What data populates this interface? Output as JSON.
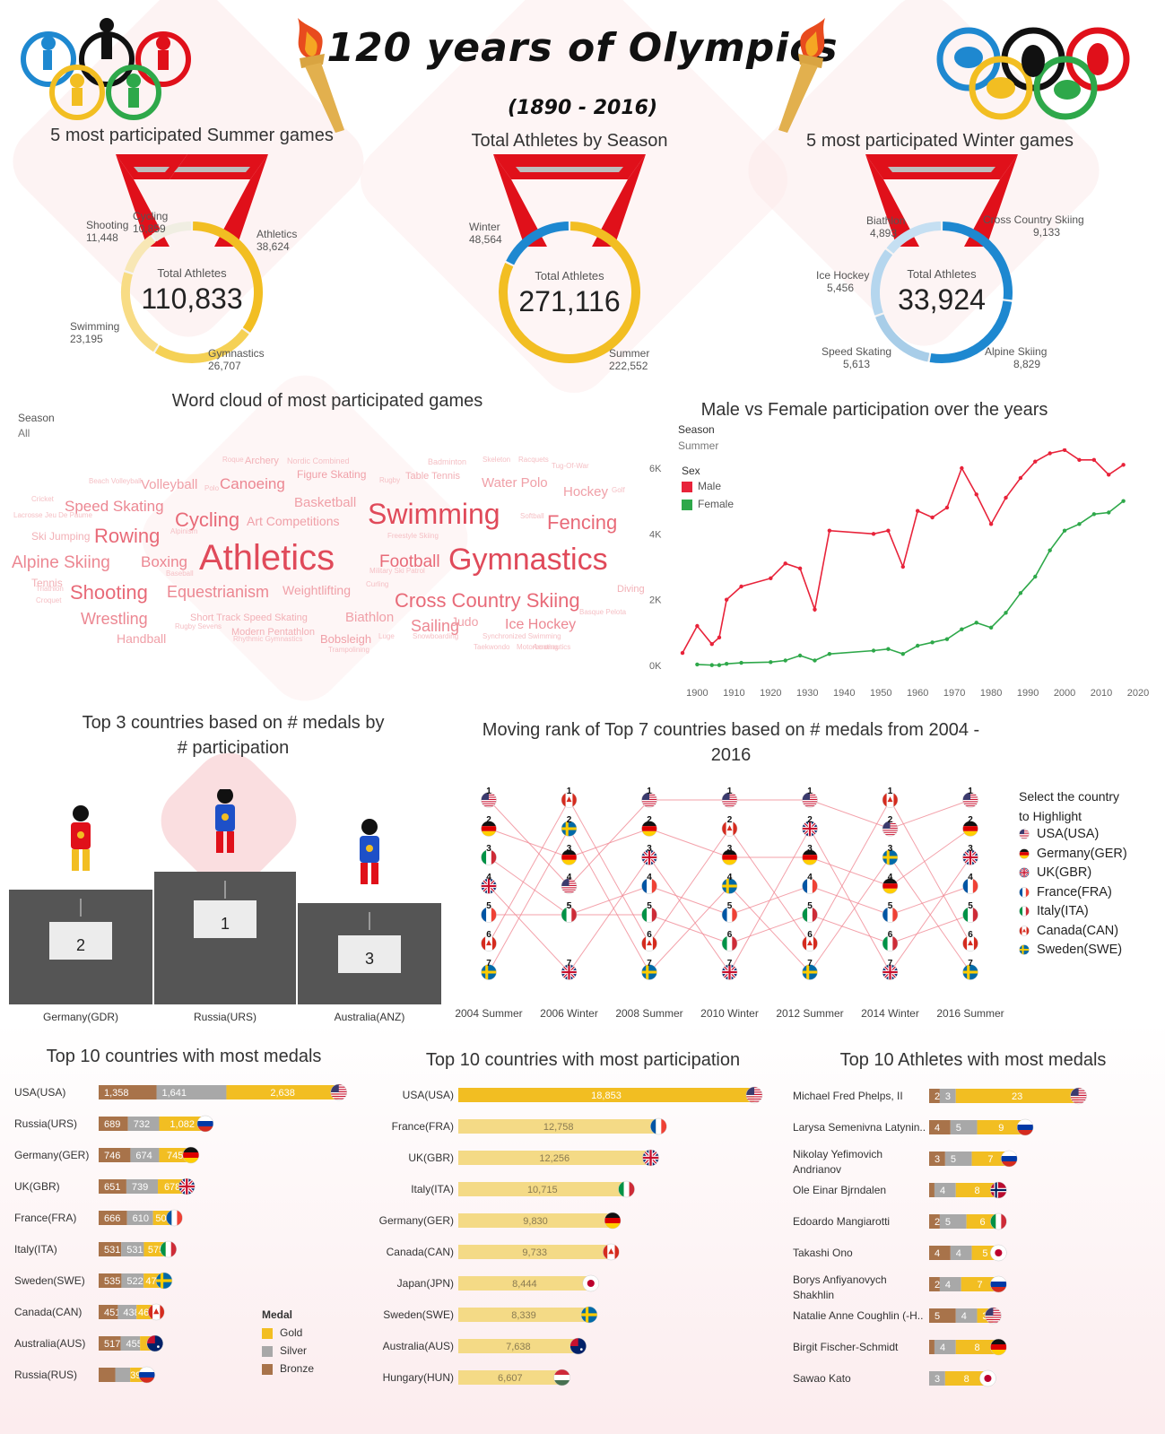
{
  "header": {
    "title": "120 years of Olympics",
    "subtitle": "(1890 - 2016)"
  },
  "colors": {
    "gold": "#F2BE22",
    "silver": "#A8A8A8",
    "bronze": "#A8734A",
    "male": "#E8233A",
    "female": "#2EA84A",
    "ribbon": "#E0101A",
    "winter_blue": "#1E88D0",
    "podium": "#555555"
  },
  "donuts": [
    {
      "title": "5 most participated Summer games",
      "center_label": "Total Athletes",
      "center_value": "110,833",
      "segments": [
        {
          "label": "Athletics",
          "value": 38624,
          "display": "38,624",
          "color": "#F2BE22"
        },
        {
          "label": "Gymnastics",
          "value": 26707,
          "display": "26,707",
          "color": "#F5D155"
        },
        {
          "label": "Swimming",
          "value": 23195,
          "display": "23,195",
          "color": "#F8DC85"
        },
        {
          "label": "Shooting",
          "value": 11448,
          "display": "11,448",
          "color": "#F8E7B5"
        },
        {
          "label": "Cycling",
          "value": 10859,
          "display": "10,859",
          "color": "#F0EEE2"
        }
      ]
    },
    {
      "title": "Total Athletes by Season",
      "center_label": "Total Athletes",
      "center_value": "271,116",
      "segments": [
        {
          "label": "Summer",
          "value": 222552,
          "display": "222,552",
          "color": "#F2BE22"
        },
        {
          "label": "Winter",
          "value": 48564,
          "display": "48,564",
          "color": "#1E88D0"
        }
      ]
    },
    {
      "title": "5 most participated Winter games",
      "center_label": "Total Athletes",
      "center_value": "33,924",
      "segments": [
        {
          "label": "Cross Country Skiing",
          "value": 9133,
          "display": "9,133",
          "color": "#1E88D0"
        },
        {
          "label": "Alpine Skiing",
          "value": 8829,
          "display": "8,829",
          "color": "#1E88D0"
        },
        {
          "label": "Speed Skating",
          "value": 5613,
          "display": "5,613",
          "color": "#A8CDE8"
        },
        {
          "label": "Ice Hockey",
          "value": 5456,
          "display": "5,456",
          "color": "#B5D6EE"
        },
        {
          "label": "Biathlon",
          "value": 4893,
          "display": "4,893",
          "color": "#C5DFF2"
        }
      ]
    }
  ],
  "wordcloud": {
    "title": "Word cloud of most participated games",
    "filter_label": "Season",
    "filter_value": "All",
    "words": [
      [
        "Athletics",
        40,
        "#E04A5A"
      ],
      [
        "Gymnastics",
        34,
        "#E04A5A"
      ],
      [
        "Swimming",
        32,
        "#E04A5A"
      ],
      [
        "Rowing",
        22,
        "#E86A78"
      ],
      [
        "Fencing",
        22,
        "#E86A78"
      ],
      [
        "Cycling",
        22,
        "#E86A78"
      ],
      [
        "Shooting",
        22,
        "#E86A78"
      ],
      [
        "Cross Country Skiing",
        22,
        "#E86A78"
      ],
      [
        "Football",
        19,
        "#E86A78"
      ],
      [
        "Alpine Skiing",
        19,
        "#EC8792"
      ],
      [
        "Speed Skating",
        17,
        "#EC8792"
      ],
      [
        "Wrestling",
        18,
        "#EC8792"
      ],
      [
        "Equestrianism",
        18,
        "#EC8792"
      ],
      [
        "Canoeing",
        17,
        "#EC8792"
      ],
      [
        "Sailing",
        18,
        "#EC8792"
      ],
      [
        "Boxing",
        17,
        "#EC8792"
      ],
      [
        "Ice Hockey",
        16,
        "#EC8792"
      ],
      [
        "Volleyball",
        15,
        "#F0A0A8"
      ],
      [
        "Basketball",
        15,
        "#F0A0A8"
      ],
      [
        "Water Polo",
        15,
        "#F0A0A8"
      ],
      [
        "Hockey",
        15,
        "#F0A0A8"
      ],
      [
        "Biathlon",
        15,
        "#F0A0A8"
      ],
      [
        "Weightlifting",
        14,
        "#F0A0A8"
      ],
      [
        "Handball",
        14,
        "#F0A0A8"
      ],
      [
        "Judo",
        14,
        "#F0A0A8"
      ],
      [
        "Bobsleigh",
        13,
        "#F0A0A8"
      ],
      [
        "Art Competitions",
        14,
        "#F0A0A8"
      ],
      [
        "Figure Skating",
        12,
        "#F0A0A8"
      ],
      [
        "Tennis",
        12,
        "#F2B0B6"
      ],
      [
        "Ski Jumping",
        12,
        "#F2B0B6"
      ],
      [
        "Modern Pentathlon",
        11,
        "#F2B0B6"
      ],
      [
        "Table Tennis",
        11,
        "#F2B0B6"
      ],
      [
        "Diving",
        11,
        "#F2B0B6"
      ],
      [
        "Short Track Speed Skating",
        11,
        "#F2B0B6"
      ],
      [
        "Archery",
        11,
        "#F2B0B6"
      ],
      [
        "Badminton",
        9,
        "#F5C0C5"
      ],
      [
        "Nordic Combined",
        9,
        "#F5C0C5"
      ],
      [
        "Lacrosse",
        8,
        "#F5C0C5"
      ],
      [
        "Jeu De Paume",
        8,
        "#F5C0C5"
      ],
      [
        "Cricket",
        8,
        "#F5C0C5"
      ],
      [
        "Beach Volleyball",
        8,
        "#F5C0C5"
      ],
      [
        "Roque",
        8,
        "#F5C0C5"
      ],
      [
        "Polo",
        8,
        "#F5C0C5"
      ],
      [
        "Rugby",
        8,
        "#F5C0C5"
      ],
      [
        "Skeleton",
        8,
        "#F5C0C5"
      ],
      [
        "Racquets",
        8,
        "#F5C0C5"
      ],
      [
        "Tug-Of-War",
        8,
        "#F5C0C5"
      ],
      [
        "Golf",
        8,
        "#F5C0C5"
      ],
      [
        "Softball",
        8,
        "#F5C0C5"
      ],
      [
        "Alpinism",
        8,
        "#F5C0C5"
      ],
      [
        "Freestyle Skiing",
        8,
        "#F5C0C5"
      ],
      [
        "Triathlon",
        8,
        "#F5C0C5"
      ],
      [
        "Croquet",
        8,
        "#F5C0C5"
      ],
      [
        "Baseball",
        8,
        "#F5C0C5"
      ],
      [
        "Curling",
        8,
        "#F5C0C5"
      ],
      [
        "Military Ski Patrol",
        8,
        "#F5C0C5"
      ],
      [
        "Basque Pelota",
        8,
        "#F5C0C5"
      ],
      [
        "Rugby Sevens",
        8,
        "#F5C0C5"
      ],
      [
        "Rhythmic Gymnastics",
        8,
        "#F5C0C5"
      ],
      [
        "Luge",
        8,
        "#F5C0C5"
      ],
      [
        "Snowboarding",
        8,
        "#F5C0C5"
      ],
      [
        "Synchronized Swimming",
        8,
        "#F5C0C5"
      ],
      [
        "Taekwondo",
        8,
        "#F5C0C5"
      ],
      [
        "Motorboating",
        8,
        "#F5C0C5"
      ],
      [
        "Aeronautics",
        8,
        "#F5C0C5"
      ],
      [
        "Trampolining",
        8,
        "#F5C0C5"
      ]
    ]
  },
  "chart_data": [
    {
      "type": "line",
      "title": "Male vs Female participation over the years",
      "filter_label": "Season",
      "filter_value": "Summer",
      "legend_title": "Sex",
      "legend_position": "top-left",
      "xticks": [
        1900,
        1910,
        1920,
        1930,
        1940,
        1950,
        1960,
        1970,
        1980,
        1990,
        2000,
        2010,
        2020
      ],
      "yticks": [
        "0K",
        "2K",
        "4K",
        "6K"
      ],
      "ylim": [
        0,
        6500
      ],
      "xlim": [
        1896,
        2020
      ],
      "series": [
        {
          "name": "Male",
          "points": [
            [
              1896,
              380
            ],
            [
              1900,
              1200
            ],
            [
              1904,
              650
            ],
            [
              1906,
              850
            ],
            [
              1908,
              2000
            ],
            [
              1912,
              2400
            ],
            [
              1920,
              2650
            ],
            [
              1924,
              3100
            ],
            [
              1928,
              2950
            ],
            [
              1932,
              1700
            ],
            [
              1936,
              4100
            ],
            [
              1948,
              4000
            ],
            [
              1952,
              4100
            ],
            [
              1956,
              3000
            ],
            [
              1960,
              4700
            ],
            [
              1964,
              4500
            ],
            [
              1968,
              4800
            ],
            [
              1972,
              6000
            ],
            [
              1976,
              5200
            ],
            [
              1980,
              4300
            ],
            [
              1984,
              5100
            ],
            [
              1988,
              5700
            ],
            [
              1992,
              6200
            ],
            [
              1996,
              6450
            ],
            [
              2000,
              6550
            ],
            [
              2004,
              6250
            ],
            [
              2008,
              6250
            ],
            [
              2012,
              5800
            ],
            [
              2016,
              6100
            ]
          ]
        },
        {
          "name": "Female",
          "points": [
            [
              1900,
              30
            ],
            [
              1904,
              10
            ],
            [
              1906,
              10
            ],
            [
              1908,
              50
            ],
            [
              1912,
              80
            ],
            [
              1920,
              100
            ],
            [
              1924,
              150
            ],
            [
              1928,
              300
            ],
            [
              1932,
              150
            ],
            [
              1936,
              350
            ],
            [
              1948,
              450
            ],
            [
              1952,
              500
            ],
            [
              1956,
              350
            ],
            [
              1960,
              600
            ],
            [
              1964,
              700
            ],
            [
              1968,
              800
            ],
            [
              1972,
              1100
            ],
            [
              1976,
              1300
            ],
            [
              1980,
              1150
            ],
            [
              1984,
              1600
            ],
            [
              1988,
              2200
            ],
            [
              1992,
              2700
            ],
            [
              1996,
              3500
            ],
            [
              2000,
              4100
            ],
            [
              2004,
              4300
            ],
            [
              2008,
              4600
            ],
            [
              2012,
              4650
            ],
            [
              2016,
              5000
            ]
          ]
        }
      ]
    },
    {
      "type": "bar",
      "title": "Top 3 countries based on # medals by # participation",
      "categories": [
        "Germany(GDR)",
        "Russia(URS)",
        "Australia(ANZ)"
      ],
      "values": [
        2,
        1,
        3
      ]
    },
    {
      "type": "line",
      "title": "Moving rank of Top 7 countries based on # medals from 2004 - 2016",
      "categories": [
        "2004 Summer",
        "2006 Winter",
        "2008 Summer",
        "2010 Winter",
        "2012 Summer",
        "2014 Winter",
        "2016 Summer"
      ],
      "legend_title": "Select the country to Highlight",
      "legend_position": "right",
      "series": [
        {
          "name": "USA(USA)",
          "code": "USA",
          "values": [
            1,
            4,
            1,
            1,
            1,
            2,
            1
          ]
        },
        {
          "name": "Germany(GER)",
          "code": "GER",
          "values": [
            2,
            3,
            2,
            3,
            3,
            4,
            2
          ]
        },
        {
          "name": "UK(GBR)",
          "code": "GBR",
          "values": [
            4,
            7,
            3,
            7,
            2,
            7,
            3
          ]
        },
        {
          "name": "France(FRA)",
          "code": "FRA",
          "values": [
            5,
            5,
            4,
            5,
            4,
            5,
            4
          ]
        },
        {
          "name": "Italy(ITA)",
          "code": "ITA",
          "values": [
            3,
            5,
            5,
            6,
            5,
            6,
            5
          ]
        },
        {
          "name": "Canada(CAN)",
          "code": "CAN",
          "values": [
            6,
            1,
            6,
            2,
            6,
            1,
            6
          ]
        },
        {
          "name": "Sweden(SWE)",
          "code": "SWE",
          "values": [
            7,
            2,
            7,
            4,
            7,
            3,
            7
          ]
        }
      ]
    },
    {
      "type": "bar",
      "title": "Top 10 countries with most medals",
      "legend_title": "Medal",
      "legend": [
        "Gold",
        "Silver",
        "Bronze"
      ],
      "categories": [
        "USA(USA)",
        "Russia(URS)",
        "Germany(GER)",
        "UK(GBR)",
        "France(FRA)",
        "Italy(ITA)",
        "Sweden(SWE)",
        "Canada(CAN)",
        "Australia(AUS)",
        "Russia(RUS)"
      ],
      "flags": [
        "USA",
        "RUS",
        "GER",
        "GBR",
        "FRA",
        "ITA",
        "SWE",
        "CAN",
        "AUS",
        "RUS"
      ],
      "series": [
        {
          "name": "Bronze",
          "values": [
            1358,
            689,
            746,
            651,
            666,
            531,
            535,
            451,
            517,
            390
          ]
        },
        {
          "name": "Silver",
          "values": [
            1641,
            732,
            674,
            739,
            610,
            531,
            522,
            438,
            455,
            350
          ]
        },
        {
          "name": "Gold",
          "values": [
            2638,
            1082,
            745,
            678,
            501,
            575,
            479,
            463,
            350,
            390
          ]
        }
      ],
      "display": [
        [
          "1,358",
          "1,641",
          "2,638"
        ],
        [
          "689",
          "732",
          "1,082"
        ],
        [
          "746",
          "674",
          "745"
        ],
        [
          "651",
          "739",
          "678"
        ],
        [
          "666",
          "610",
          "501"
        ],
        [
          "531",
          "531",
          "575"
        ],
        [
          "535",
          "522",
          "479"
        ],
        [
          "451",
          "438",
          "463"
        ],
        [
          "517",
          "455",
          ""
        ],
        [
          "",
          "",
          "390"
        ]
      ]
    },
    {
      "type": "bar",
      "title": "Top 10 countries with most participation",
      "categories": [
        "USA(USA)",
        "France(FRA)",
        "UK(GBR)",
        "Italy(ITA)",
        "Germany(GER)",
        "Canada(CAN)",
        "Japan(JPN)",
        "Sweden(SWE)",
        "Australia(AUS)",
        "Hungary(HUN)"
      ],
      "flags": [
        "USA",
        "FRA",
        "GBR",
        "ITA",
        "GER",
        "CAN",
        "JPN",
        "SWE",
        "AUS",
        "HUN"
      ],
      "values": [
        18853,
        12758,
        12256,
        10715,
        9830,
        9733,
        8444,
        8339,
        7638,
        6607
      ],
      "display": [
        "18,853",
        "12,758",
        "12,256",
        "10,715",
        "9,830",
        "9,733",
        "8,444",
        "8,339",
        "7,638",
        "6,607"
      ]
    },
    {
      "type": "bar",
      "title": "Top 10 Athletes with most medals",
      "categories": [
        "Michael Fred Phelps, II",
        "Larysa Semenivna Latynin..",
        "Nikolay Yefimovich Andrianov",
        "Ole Einar Bjrndalen",
        "Edoardo Mangiarotti",
        "Takashi Ono",
        "Borys Anfiyanovych Shakhlin",
        "Natalie Anne Coughlin (-H..",
        "Birgit Fischer-Schmidt",
        "Sawao Kato"
      ],
      "flags": [
        "USA",
        "RUS",
        "RUS",
        "NOR",
        "ITA",
        "JPN",
        "RUS",
        "USA",
        "GER",
        "JPN"
      ],
      "series": [
        {
          "name": "Bronze",
          "values": [
            2,
            4,
            3,
            1,
            2,
            4,
            2,
            5,
            1,
            0
          ]
        },
        {
          "name": "Silver",
          "values": [
            3,
            5,
            5,
            4,
            5,
            4,
            4,
            4,
            4,
            3
          ]
        },
        {
          "name": "Gold",
          "values": [
            23,
            9,
            7,
            8,
            6,
            5,
            7,
            3,
            8,
            8
          ]
        }
      ],
      "display": [
        [
          "2",
          "3",
          "23"
        ],
        [
          "4",
          "5",
          "9"
        ],
        [
          "3",
          "5",
          "7"
        ],
        [
          "",
          "4",
          "8"
        ],
        [
          "2",
          "5",
          "6"
        ],
        [
          "4",
          "4",
          "5"
        ],
        [
          "2",
          "4",
          "7"
        ],
        [
          "5",
          "4",
          "3"
        ],
        [
          "",
          "4",
          "8"
        ],
        [
          "",
          "3",
          "8"
        ]
      ]
    }
  ],
  "podium": {
    "title_line1": "Top 3 countries based on # medals by",
    "title_line2": "# participation",
    "labels": [
      "Germany(GDR)",
      "Russia(URS)",
      "Australia(ANZ)"
    ],
    "places": [
      "2",
      "1",
      "3"
    ]
  },
  "rank_chart": {
    "title_line1": "Moving rank of Top 7 countries based on # medals from 2004 -",
    "title_line2": "2016",
    "legend_line1": "Select the country",
    "legend_line2": "to Highlight"
  },
  "medal_legend": {
    "title": "Medal",
    "items": [
      "Gold",
      "Silver",
      "Bronze"
    ]
  }
}
